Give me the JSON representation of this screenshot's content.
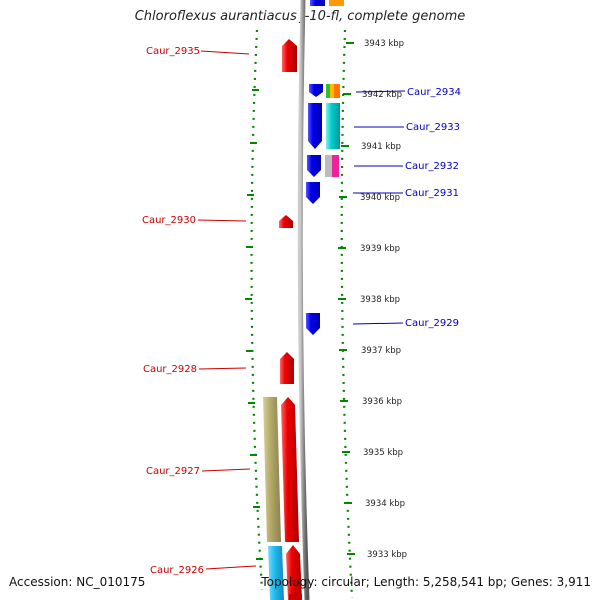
{
  "title": "Chloroflexus aurantiacus J-10-fl, complete genome",
  "accession": "Accession: NC_010175",
  "topology": "Topology: circular; Length: 5,258,541 bp; Genes: 3,911",
  "colors": {
    "left_strand_label": "#cc0000",
    "right_strand_label": "#0000bb",
    "gene_red": "#ee0000",
    "gene_blue": "#0000ee",
    "gene_cyan": "#00cccc",
    "gene_light_blue": "#22bbee",
    "gene_olive": "#b5ab6a",
    "gene_green": "#33bb33",
    "gene_orange": "#ff8800",
    "gene_gray": "#aaaaaa",
    "gene_magenta": "#ee2299",
    "backbone": "#888888",
    "dotted_ring": "#008800"
  },
  "axis": {
    "unit": "kbp",
    "ticks": [
      {
        "label": "3943 kbp"
      },
      {
        "label": "3942 kbp"
      },
      {
        "label": "3941 kbp"
      },
      {
        "label": "3940 kbp"
      },
      {
        "label": "3939 kbp"
      },
      {
        "label": "3938 kbp"
      },
      {
        "label": "3937 kbp"
      },
      {
        "label": "3936 kbp"
      },
      {
        "label": "3935 kbp"
      },
      {
        "label": "3934 kbp"
      },
      {
        "label": "3933 kbp"
      }
    ]
  },
  "genes_left": [
    {
      "label": "Caur_2935"
    },
    {
      "label": "Caur_2930"
    },
    {
      "label": "Caur_2928"
    },
    {
      "label": "Caur_2927"
    },
    {
      "label": "Caur_2926"
    }
  ],
  "genes_right": [
    {
      "label": "Caur_2934"
    },
    {
      "label": "Caur_2933"
    },
    {
      "label": "Caur_2932"
    },
    {
      "label": "Caur_2931"
    },
    {
      "label": "Caur_2929"
    }
  ]
}
